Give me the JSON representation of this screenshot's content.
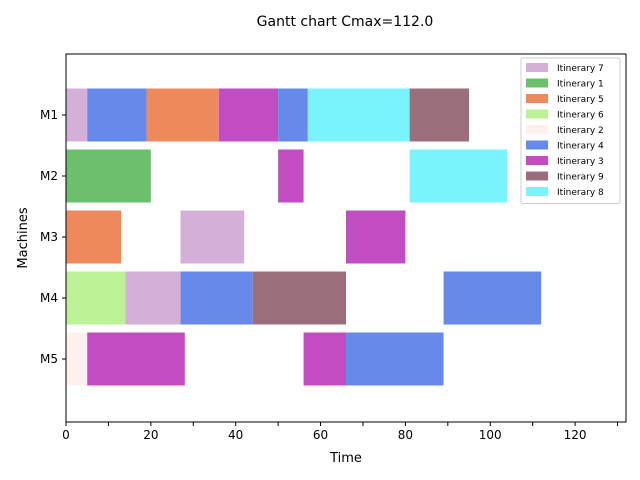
{
  "chart_data": {
    "type": "gantt",
    "title": "Gantt chart  Cmax=112.0",
    "xlabel": "Time",
    "ylabel": "Machines",
    "xlim": [
      0,
      132
    ],
    "x_ticks": [
      0,
      20,
      40,
      60,
      80,
      100,
      120
    ],
    "x_minor_ticks": [
      10,
      30,
      50,
      70,
      90,
      110,
      130
    ],
    "machines": [
      "M1",
      "M2",
      "M3",
      "M4",
      "M5"
    ],
    "legend_position": "top-right",
    "legend": [
      {
        "label": "Itinerary 7",
        "color": "#d4b0d8"
      },
      {
        "label": "Itinerary 1",
        "color": "#6cc06c"
      },
      {
        "label": "Itinerary 5",
        "color": "#ed895a"
      },
      {
        "label": "Itinerary 6",
        "color": "#bdf196"
      },
      {
        "label": "Itinerary 2",
        "color": "#fdf0ee"
      },
      {
        "label": "Itinerary 4",
        "color": "#6689ea"
      },
      {
        "label": "Itinerary 3",
        "color": "#c24dc2"
      },
      {
        "label": "Itinerary 9",
        "color": "#9b6e7b"
      },
      {
        "label": "Itinerary 8",
        "color": "#7af4fc"
      }
    ],
    "tasks": [
      {
        "machine": "M1",
        "itinerary": "Itinerary 7",
        "start": 0,
        "end": 5
      },
      {
        "machine": "M1",
        "itinerary": "Itinerary 4",
        "start": 5,
        "end": 19
      },
      {
        "machine": "M1",
        "itinerary": "Itinerary 5",
        "start": 19,
        "end": 36
      },
      {
        "machine": "M1",
        "itinerary": "Itinerary 3",
        "start": 36,
        "end": 50
      },
      {
        "machine": "M1",
        "itinerary": "Itinerary 4",
        "start": 50,
        "end": 57
      },
      {
        "machine": "M1",
        "itinerary": "Itinerary 8",
        "start": 57,
        "end": 81
      },
      {
        "machine": "M1",
        "itinerary": "Itinerary 9",
        "start": 81,
        "end": 95
      },
      {
        "machine": "M2",
        "itinerary": "Itinerary 1",
        "start": 0,
        "end": 20
      },
      {
        "machine": "M2",
        "itinerary": "Itinerary 3",
        "start": 50,
        "end": 56
      },
      {
        "machine": "M2",
        "itinerary": "Itinerary 8",
        "start": 81,
        "end": 104
      },
      {
        "machine": "M3",
        "itinerary": "Itinerary 5",
        "start": 0,
        "end": 13
      },
      {
        "machine": "M3",
        "itinerary": "Itinerary 7",
        "start": 27,
        "end": 42
      },
      {
        "machine": "M3",
        "itinerary": "Itinerary 3",
        "start": 66,
        "end": 80
      },
      {
        "machine": "M4",
        "itinerary": "Itinerary 6",
        "start": 0,
        "end": 14
      },
      {
        "machine": "M4",
        "itinerary": "Itinerary 7",
        "start": 14,
        "end": 27
      },
      {
        "machine": "M4",
        "itinerary": "Itinerary 4",
        "start": 27,
        "end": 44
      },
      {
        "machine": "M4",
        "itinerary": "Itinerary 9",
        "start": 44,
        "end": 66
      },
      {
        "machine": "M4",
        "itinerary": "Itinerary 4",
        "start": 89,
        "end": 112
      },
      {
        "machine": "M5",
        "itinerary": "Itinerary 2",
        "start": 0,
        "end": 5
      },
      {
        "machine": "M5",
        "itinerary": "Itinerary 3",
        "start": 5,
        "end": 28
      },
      {
        "machine": "M5",
        "itinerary": "Itinerary 3",
        "start": 56,
        "end": 66
      },
      {
        "machine": "M5",
        "itinerary": "Itinerary 4",
        "start": 66,
        "end": 89
      }
    ]
  }
}
